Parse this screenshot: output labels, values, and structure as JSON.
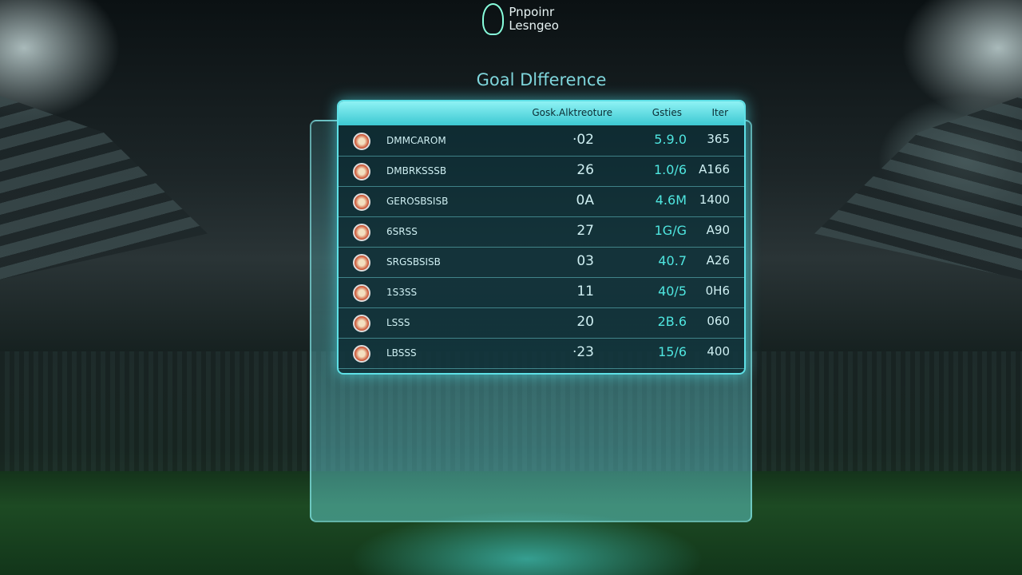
{
  "header": {
    "logo": "Pnpoinr Lesngeo",
    "title": "Goal Dlfference"
  },
  "table": {
    "columns": [
      "Gosk.Alktreoture",
      "Gsties",
      "Iter"
    ],
    "rows": [
      [
        "DMMCAROM",
        "·02",
        "5.9.0",
        "365"
      ],
      [
        "DMBRKSSSB",
        "26",
        "1.0/6",
        "A166"
      ],
      [
        "GEROSBSISB",
        "0A",
        "4.6M",
        "1400"
      ],
      [
        "6SRSS",
        "27",
        "1G/G",
        "A90"
      ],
      [
        "SRGSBSISB",
        "03",
        "40.7",
        "A26"
      ],
      [
        "1S3SS",
        "11",
        "40/5",
        "0H6"
      ],
      [
        "LSSS",
        "20",
        "2B.6",
        "060"
      ],
      [
        "LBSSS",
        "·23",
        "15/6",
        "400"
      ]
    ]
  }
}
